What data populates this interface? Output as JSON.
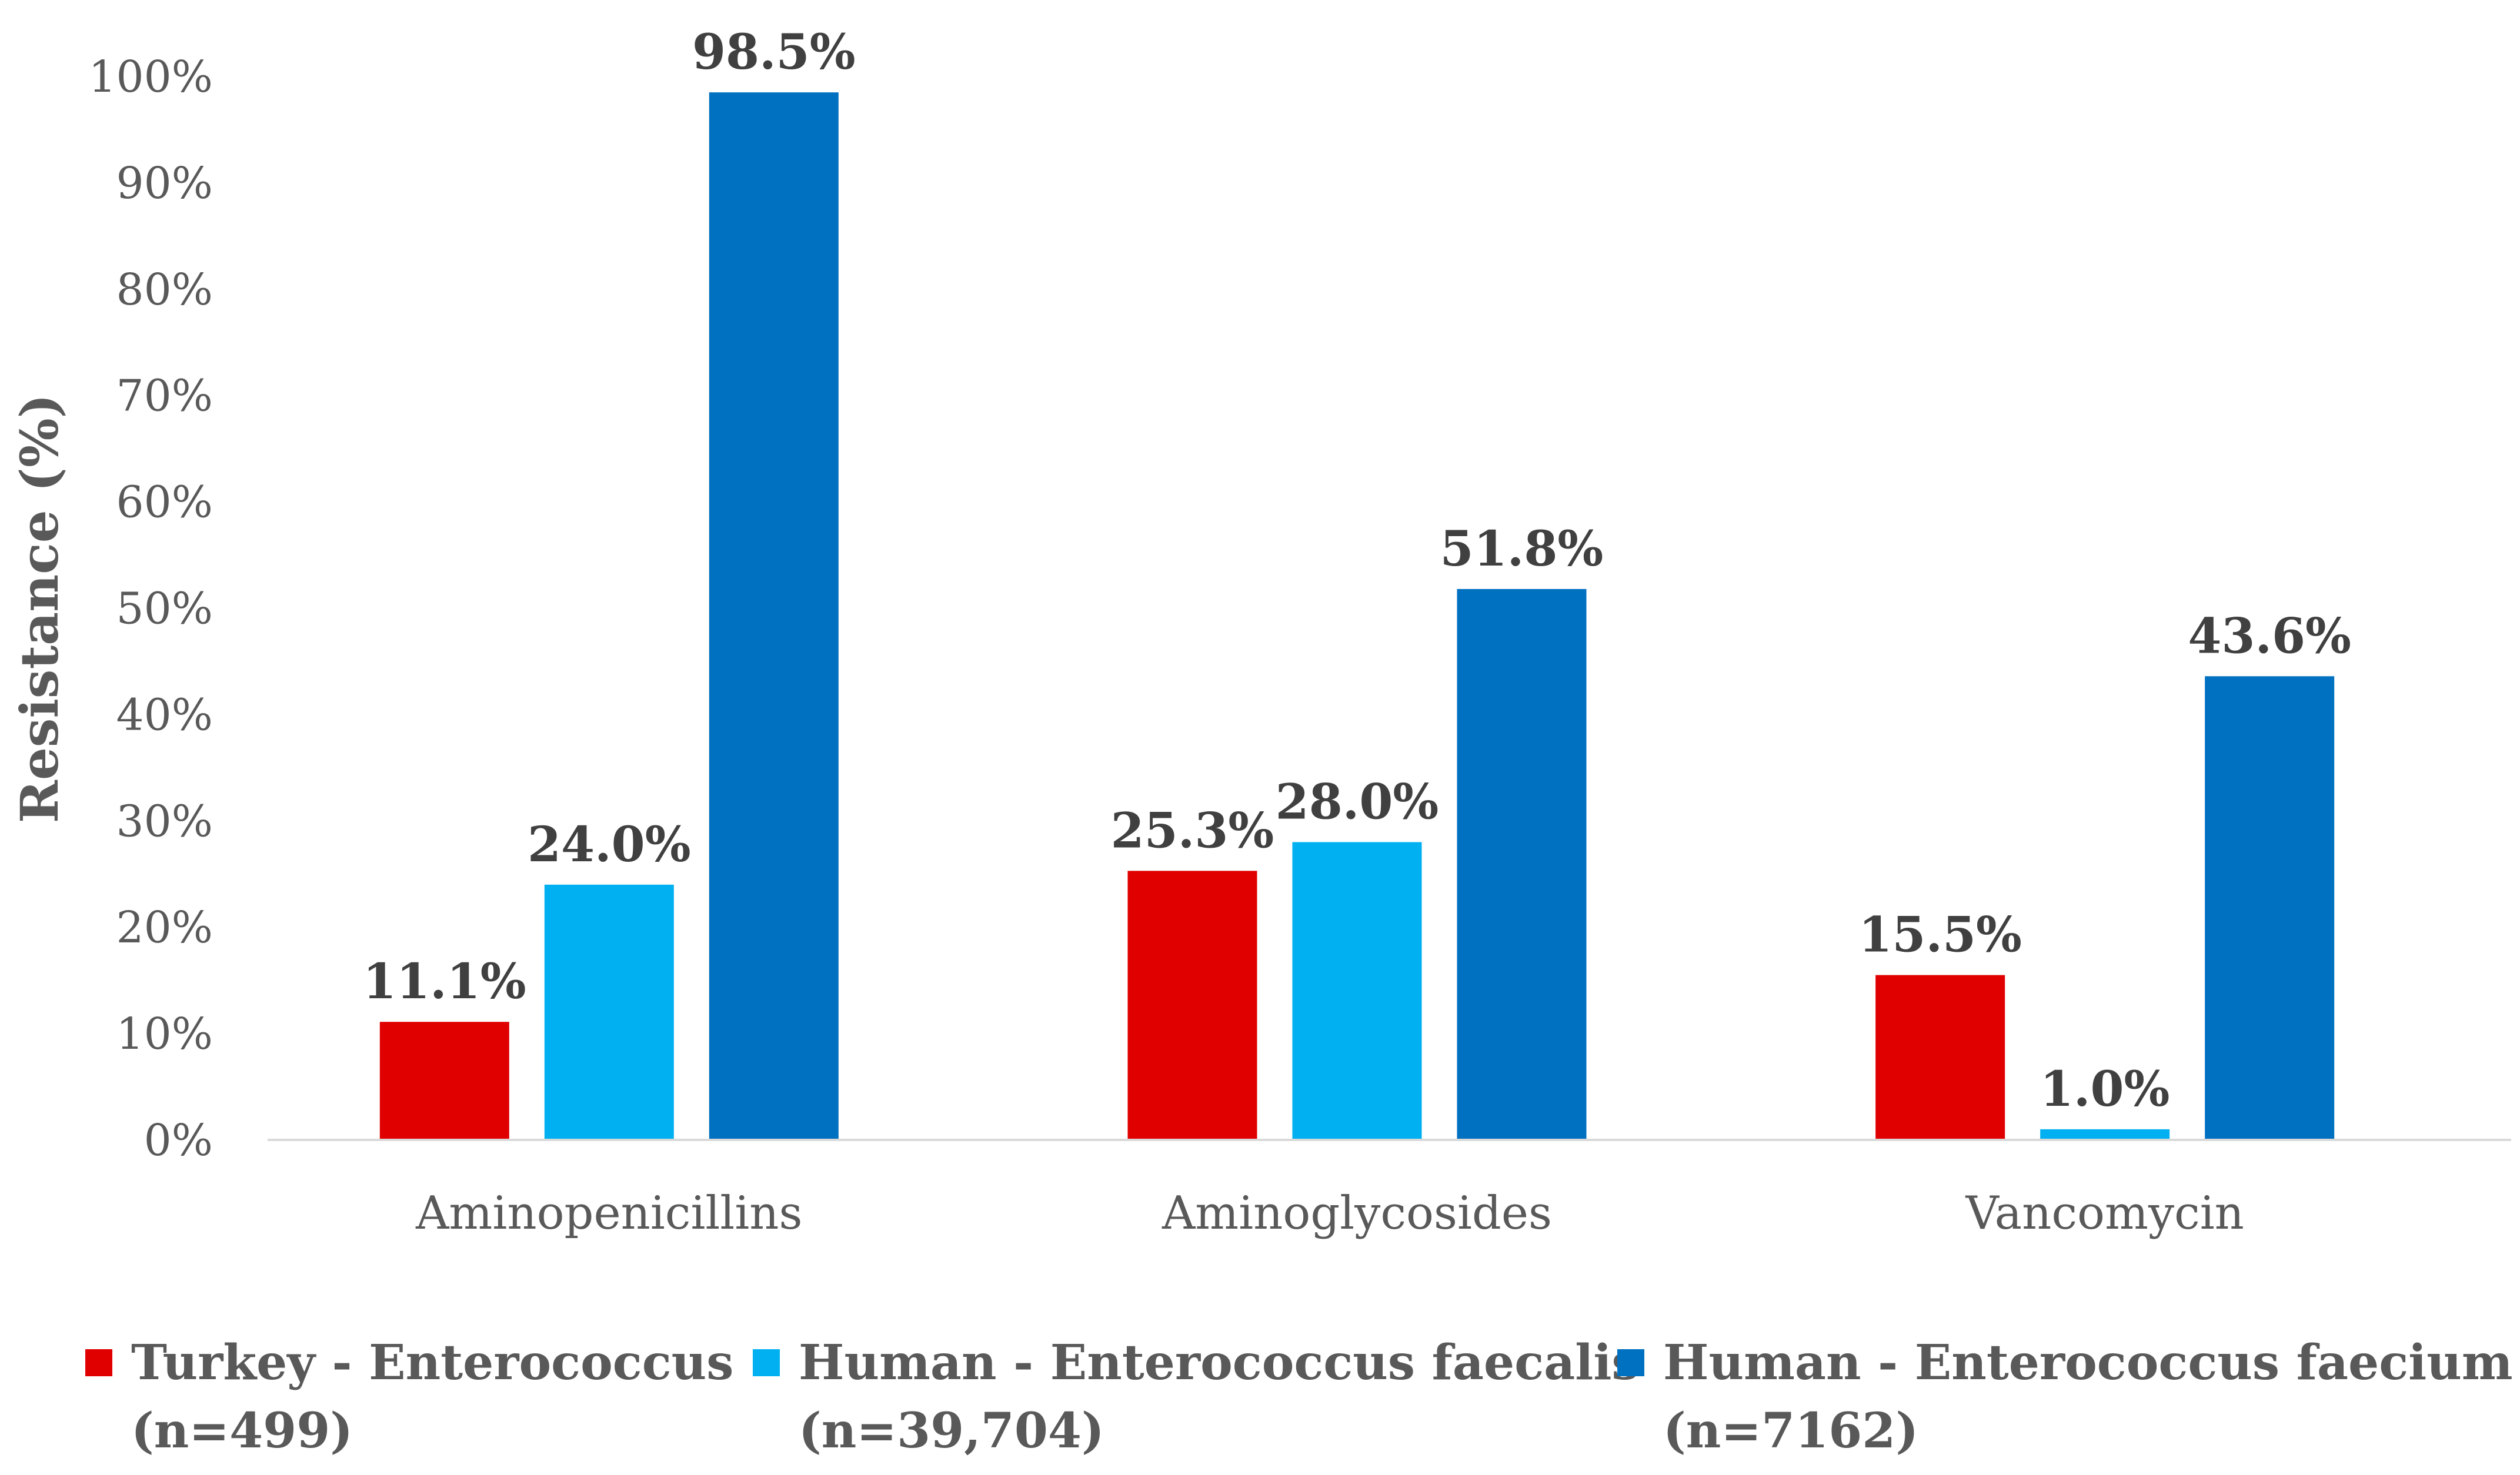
{
  "chart_data": {
    "type": "bar",
    "title": "",
    "xlabel": "",
    "ylabel": "Resistance (%)",
    "ylim": [
      0,
      100
    ],
    "y_ticks": [
      "0%",
      "10%",
      "20%",
      "30%",
      "40%",
      "50%",
      "60%",
      "70%",
      "80%",
      "90%",
      "100%"
    ],
    "categories": [
      "Aminopenicillins",
      "Aminoglycosides",
      "Vancomycin"
    ],
    "grid": false,
    "legend_position": "bottom",
    "series": [
      {
        "name": "Turkey - Enterococcus",
        "sample": "(n=499)",
        "color": "#E00000",
        "values": [
          11.1,
          25.3,
          15.5
        ],
        "labels": [
          "11.1%",
          "25.3%",
          "15.5%"
        ]
      },
      {
        "name": "Human - Enterococcus faecalis",
        "sample": "(n=39,704)",
        "color": "#00B0F0",
        "values": [
          24.0,
          28.0,
          1.0
        ],
        "labels": [
          "24.0%",
          "28.0%",
          "1.0%"
        ]
      },
      {
        "name": "Human - Enterococcus faecium",
        "sample": "(n=7162)",
        "color": "#0070C0",
        "values": [
          98.5,
          51.8,
          43.6
        ],
        "labels": [
          "98.5%",
          "51.8%",
          "43.6%"
        ]
      }
    ]
  }
}
